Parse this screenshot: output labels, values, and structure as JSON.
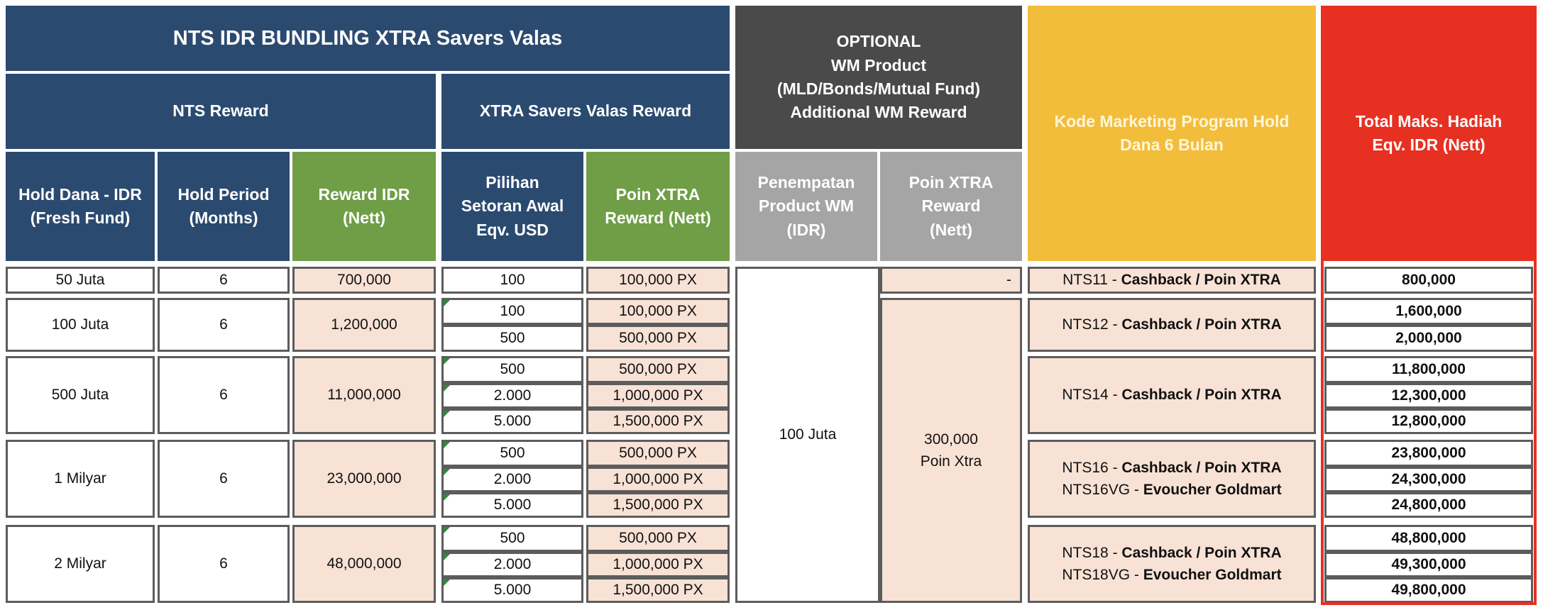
{
  "header": {
    "title": "NTS IDR BUNDLING XTRA Savers Valas",
    "nts_reward": "NTS Reward",
    "xtra_reward": "XTRA Savers Valas Reward",
    "optional": [
      "OPTIONAL",
      "WM Product",
      "(MLD/Bonds/Mutual Fund)",
      "Additional WM Reward"
    ],
    "kode": "Kode Marketing Program Hold Dana 6 Bulan",
    "total": "Total Maks. Hadiah Eqv. IDR (Nett)"
  },
  "columns": {
    "hold_dana": "Hold Dana - IDR (Fresh Fund)",
    "hold_period": "Hold Period (Months)",
    "reward_idr": "Reward IDR (Nett)",
    "pilihan": "Pilihan Setoran Awal Eqv. USD",
    "poin_xtra": "Poin XTRA Reward (Nett)",
    "penempatan": "Penempatan Product WM (IDR)",
    "poin_xtra_wm": "Poin XTRA Reward (Nett)"
  },
  "groups": [
    {
      "hold": "50 Juta",
      "period": "6",
      "reward": "700,000",
      "options": [
        {
          "usd": "100",
          "poin": "100,000 PX",
          "total": "800,000"
        }
      ]
    },
    {
      "hold": "100 Juta",
      "period": "6",
      "reward": "1,200,000",
      "options": [
        {
          "usd": "100",
          "poin": "100,000 PX",
          "total": "1,600,000"
        },
        {
          "usd": "500",
          "poin": "500,000 PX",
          "total": "2,000,000"
        }
      ]
    },
    {
      "hold": "500 Juta",
      "period": "6",
      "reward": "11,000,000",
      "options": [
        {
          "usd": "500",
          "poin": "500,000 PX",
          "total": "11,800,000"
        },
        {
          "usd": "2.000",
          "poin": "1,000,000 PX",
          "total": "12,300,000"
        },
        {
          "usd": "5.000",
          "poin": "1,500,000 PX",
          "total": "12,800,000"
        }
      ]
    },
    {
      "hold": "1 Milyar",
      "period": "6",
      "reward": "23,000,000",
      "options": [
        {
          "usd": "500",
          "poin": "500,000 PX",
          "total": "23,800,000"
        },
        {
          "usd": "2.000",
          "poin": "1,000,000 PX",
          "total": "24,300,000"
        },
        {
          "usd": "5.000",
          "poin": "1,500,000 PX",
          "total": "24,800,000"
        }
      ]
    },
    {
      "hold": "2 Milyar",
      "period": "6",
      "reward": "48,000,000",
      "options": [
        {
          "usd": "500",
          "poin": "500,000 PX",
          "total": "48,800,000"
        },
        {
          "usd": "2.000",
          "poin": "1,000,000 PX",
          "total": "49,300,000"
        },
        {
          "usd": "5.000",
          "poin": "1,500,000 PX",
          "total": "49,800,000"
        }
      ]
    }
  ],
  "wm": {
    "placement": "100 Juta",
    "first_reward": "-",
    "reward_line1": "300,000",
    "reward_line2": "Poin Xtra"
  },
  "codes": [
    [
      {
        "code": "NTS11",
        "desc": "Cashback / Poin XTRA"
      }
    ],
    [
      {
        "code": "NTS12",
        "desc": "Cashback / Poin XTRA"
      }
    ],
    [
      {
        "code": "NTS14",
        "desc": "Cashback / Poin XTRA"
      }
    ],
    [
      {
        "code": "NTS16",
        "desc": "Cashback / Poin XTRA"
      },
      {
        "code": "NTS16VG",
        "desc": "Evoucher Goldmart"
      }
    ],
    [
      {
        "code": "NTS18",
        "desc": "Cashback / Poin XTRA"
      },
      {
        "code": "NTS18VG",
        "desc": "Evoucher Goldmart"
      }
    ]
  ],
  "code_separator": " - ",
  "colors": {
    "navy": "#2b4a70",
    "green": "#6f9e46",
    "dark_gray": "#4a4a4a",
    "light_gray": "#a5a5a5",
    "yellow": "#f3bd3c",
    "red": "#e63022",
    "peach": "#f8e2d5"
  }
}
